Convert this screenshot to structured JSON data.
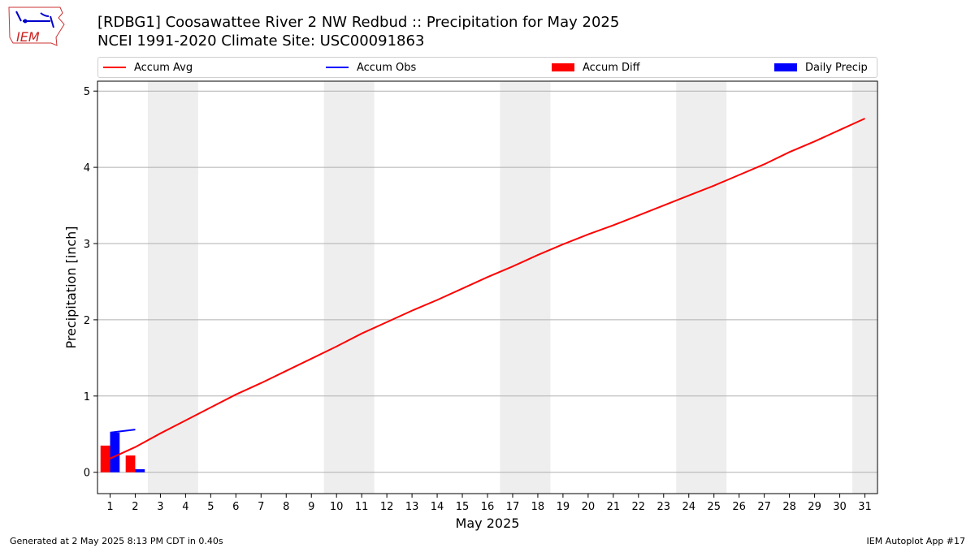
{
  "header": {
    "title": "[RDBG1] Coosawattee River 2 NW Redbud :: Precipitation for May 2025",
    "subtitle": "NCEI 1991-2020 Climate Site: USC00091863"
  },
  "logo": {
    "text": "IEM",
    "icon": "iowa-state-outline-logo"
  },
  "legend": [
    {
      "label": "Accum Avg",
      "color": "#ff0000",
      "kind": "line"
    },
    {
      "label": "Accum Obs",
      "color": "#0000ff",
      "kind": "line"
    },
    {
      "label": "Accum Diff",
      "color": "#ff0000",
      "kind": "box"
    },
    {
      "label": "Daily Precip",
      "color": "#0000ff",
      "kind": "box"
    }
  ],
  "footer": {
    "left": "Generated at 2 May 2025 8:13 PM CDT in 0.40s",
    "right": "IEM Autoplot App #17"
  },
  "chart_data": {
    "type": "line",
    "title": "[RDBG1] Coosawattee River 2 NW Redbud :: Precipitation for May 2025",
    "xlabel": "May 2025",
    "ylabel": "Precipitation [inch]",
    "xlim": [
      0.5,
      31.5
    ],
    "ylim": [
      -0.28,
      5.13
    ],
    "x_ticks": [
      1,
      2,
      3,
      4,
      5,
      6,
      7,
      8,
      9,
      10,
      11,
      12,
      13,
      14,
      15,
      16,
      17,
      18,
      19,
      20,
      21,
      22,
      23,
      24,
      25,
      26,
      27,
      28,
      29,
      30,
      31
    ],
    "y_ticks": [
      0,
      1,
      2,
      3,
      4,
      5
    ],
    "grid": "horizontal",
    "weekend_shading": [
      [
        2.5,
        4.5
      ],
      [
        9.5,
        11.5
      ],
      [
        16.5,
        18.5
      ],
      [
        23.5,
        25.5
      ],
      [
        30.5,
        31.5
      ]
    ],
    "shading_color": "#eeeeee",
    "series": [
      {
        "name": "Accum Avg",
        "kind": "line",
        "color": "#ff0000",
        "x": [
          1,
          2,
          3,
          4,
          5,
          6,
          7,
          8,
          9,
          10,
          11,
          12,
          13,
          14,
          15,
          16,
          17,
          18,
          19,
          20,
          21,
          22,
          23,
          24,
          25,
          26,
          27,
          28,
          29,
          30,
          31
        ],
        "values": [
          0.18,
          0.33,
          0.51,
          0.68,
          0.85,
          1.02,
          1.17,
          1.33,
          1.49,
          1.65,
          1.82,
          1.97,
          2.12,
          2.26,
          2.41,
          2.56,
          2.7,
          2.85,
          2.99,
          3.12,
          3.24,
          3.37,
          3.5,
          3.63,
          3.76,
          3.9,
          4.04,
          4.2,
          4.34,
          4.49,
          4.64
        ]
      },
      {
        "name": "Accum Obs",
        "kind": "line",
        "color": "#0000ff",
        "x": [
          1,
          2
        ],
        "values": [
          0.52,
          0.56
        ]
      },
      {
        "name": "Accum Diff",
        "kind": "bar",
        "color": "#ff0000",
        "x": [
          1,
          2
        ],
        "values": [
          0.35,
          0.22
        ]
      },
      {
        "name": "Daily Precip",
        "kind": "bar",
        "color": "#0000ff",
        "x": [
          1,
          2
        ],
        "values": [
          0.52,
          0.04
        ]
      }
    ]
  }
}
